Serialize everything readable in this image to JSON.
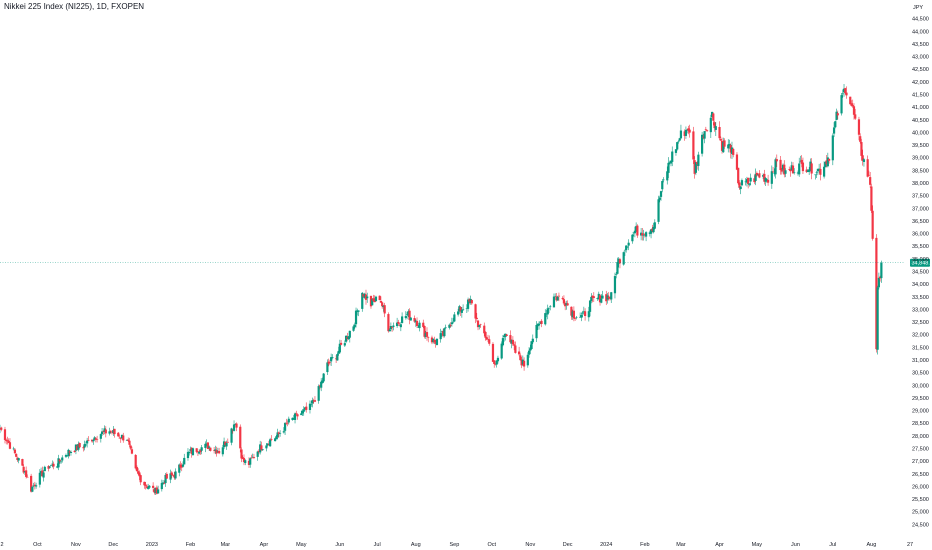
{
  "header": {
    "title": "Nikkei 225 Index (NI225), 1D, FXOPEN"
  },
  "chart_data": {
    "type": "candlestick",
    "currency": "JPY",
    "ylim": [
      24000,
      45000
    ],
    "y_ticks": [
      {
        "value": 44500,
        "label": "44,500"
      },
      {
        "value": 44000,
        "label": "44,000"
      },
      {
        "value": 43500,
        "label": "43,500"
      },
      {
        "value": 43000,
        "label": "43,000"
      },
      {
        "value": 42500,
        "label": "42,500"
      },
      {
        "value": 42000,
        "label": "42,000"
      },
      {
        "value": 41500,
        "label": "41,500"
      },
      {
        "value": 41000,
        "label": "41,000"
      },
      {
        "value": 40500,
        "label": "40,500"
      },
      {
        "value": 40000,
        "label": "40,000"
      },
      {
        "value": 39500,
        "label": "39,500"
      },
      {
        "value": 39000,
        "label": "39,000"
      },
      {
        "value": 38500,
        "label": "38,500"
      },
      {
        "value": 38000,
        "label": "38,000"
      },
      {
        "value": 37500,
        "label": "37,500"
      },
      {
        "value": 37000,
        "label": "37,000"
      },
      {
        "value": 36500,
        "label": "36,500"
      },
      {
        "value": 36000,
        "label": "36,000"
      },
      {
        "value": 35500,
        "label": "35,500"
      },
      {
        "value": 35000,
        "label": "35,000"
      },
      {
        "value": 34500,
        "label": "34,500"
      },
      {
        "value": 34000,
        "label": "34,000"
      },
      {
        "value": 33500,
        "label": "33,500"
      },
      {
        "value": 33000,
        "label": "33,000"
      },
      {
        "value": 32500,
        "label": "32,500"
      },
      {
        "value": 32000,
        "label": "32,000"
      },
      {
        "value": 31500,
        "label": "31,500"
      },
      {
        "value": 31000,
        "label": "31,000"
      },
      {
        "value": 30500,
        "label": "30,500"
      },
      {
        "value": 30000,
        "label": "30,000"
      },
      {
        "value": 29500,
        "label": "29,500"
      },
      {
        "value": 29000,
        "label": "29,000"
      },
      {
        "value": 28500,
        "label": "28,500"
      },
      {
        "value": 28000,
        "label": "28,000"
      },
      {
        "value": 27500,
        "label": "27,500"
      },
      {
        "value": 27000,
        "label": "27,000"
      },
      {
        "value": 26500,
        "label": "26,500"
      },
      {
        "value": 26000,
        "label": "26,000"
      },
      {
        "value": 25500,
        "label": "25,500"
      },
      {
        "value": 25000,
        "label": "25,000"
      },
      {
        "value": 24500,
        "label": "24,500"
      }
    ],
    "x_ticks": [
      {
        "date": "2022-09-01",
        "label": "2"
      },
      {
        "date": "2022-10-01",
        "label": "Oct"
      },
      {
        "date": "2022-11-01",
        "label": "Nov"
      },
      {
        "date": "2022-12-01",
        "label": "Dec"
      },
      {
        "date": "2023-01-01",
        "label": "2023"
      },
      {
        "date": "2023-02-01",
        "label": "Feb"
      },
      {
        "date": "2023-03-01",
        "label": "Mar"
      },
      {
        "date": "2023-04-01",
        "label": "Apr"
      },
      {
        "date": "2023-05-01",
        "label": "May"
      },
      {
        "date": "2023-06-01",
        "label": "Jun"
      },
      {
        "date": "2023-07-01",
        "label": "Jul"
      },
      {
        "date": "2023-08-01",
        "label": "Aug"
      },
      {
        "date": "2023-09-01",
        "label": "Sep"
      },
      {
        "date": "2023-10-01",
        "label": "Oct"
      },
      {
        "date": "2023-11-01",
        "label": "Nov"
      },
      {
        "date": "2023-12-01",
        "label": "Dec"
      },
      {
        "date": "2024-01-01",
        "label": "2024"
      },
      {
        "date": "2024-02-01",
        "label": "Feb"
      },
      {
        "date": "2024-03-01",
        "label": "Mar"
      },
      {
        "date": "2024-04-01",
        "label": "Apr"
      },
      {
        "date": "2024-05-01",
        "label": "May"
      },
      {
        "date": "2024-06-01",
        "label": "Jun"
      },
      {
        "date": "2024-07-01",
        "label": "Jul"
      },
      {
        "date": "2024-08-01",
        "label": "Aug"
      },
      {
        "date": "2024-09-01",
        "label": "27"
      }
    ],
    "xlim": [
      "2022-09-01",
      "2024-09-01"
    ],
    "price_path": [
      [
        "2022-09-01",
        28300
      ],
      [
        "2022-09-07",
        27800
      ],
      [
        "2022-09-14",
        27200
      ],
      [
        "2022-09-21",
        26600
      ],
      [
        "2022-09-26",
        25900
      ],
      [
        "2022-10-03",
        26400
      ],
      [
        "2022-10-10",
        26800
      ],
      [
        "2022-10-17",
        26900
      ],
      [
        "2022-10-24",
        27300
      ],
      [
        "2022-10-31",
        27500
      ],
      [
        "2022-11-07",
        27600
      ],
      [
        "2022-11-14",
        27900
      ],
      [
        "2022-11-21",
        28100
      ],
      [
        "2022-11-28",
        28200
      ],
      [
        "2022-12-05",
        28000
      ],
      [
        "2022-12-12",
        27900
      ],
      [
        "2022-12-19",
        26600
      ],
      [
        "2022-12-26",
        26100
      ],
      [
        "2023-01-04",
        25800
      ],
      [
        "2023-01-12",
        26300
      ],
      [
        "2023-01-20",
        26500
      ],
      [
        "2023-01-30",
        27300
      ],
      [
        "2023-02-07",
        27500
      ],
      [
        "2023-02-15",
        27600
      ],
      [
        "2023-02-24",
        27400
      ],
      [
        "2023-03-03",
        27900
      ],
      [
        "2023-03-09",
        28600
      ],
      [
        "2023-03-15",
        27000
      ],
      [
        "2023-03-20",
        26900
      ],
      [
        "2023-03-28",
        27500
      ],
      [
        "2023-04-05",
        27800
      ],
      [
        "2023-04-12",
        28000
      ],
      [
        "2023-04-20",
        28500
      ],
      [
        "2023-04-28",
        28800
      ],
      [
        "2023-05-08",
        29100
      ],
      [
        "2023-05-15",
        29800
      ],
      [
        "2023-05-22",
        30800
      ],
      [
        "2023-05-29",
        31200
      ],
      [
        "2023-06-05",
        31800
      ],
      [
        "2023-06-12",
        32400
      ],
      [
        "2023-06-19",
        33700
      ],
      [
        "2023-06-26",
        33200
      ],
      [
        "2023-07-03",
        33500
      ],
      [
        "2023-07-10",
        32300
      ],
      [
        "2023-07-18",
        32500
      ],
      [
        "2023-07-25",
        32800
      ],
      [
        "2023-08-01",
        32600
      ],
      [
        "2023-08-08",
        32100
      ],
      [
        "2023-08-16",
        31700
      ],
      [
        "2023-08-23",
        32000
      ],
      [
        "2023-08-30",
        32600
      ],
      [
        "2023-09-06",
        33000
      ],
      [
        "2023-09-14",
        33300
      ],
      [
        "2023-09-21",
        32300
      ],
      [
        "2023-09-28",
        31800
      ],
      [
        "2023-10-04",
        30700
      ],
      [
        "2023-10-12",
        32200
      ],
      [
        "2023-10-20",
        31300
      ],
      [
        "2023-10-27",
        30800
      ],
      [
        "2023-11-02",
        31800
      ],
      [
        "2023-11-10",
        32600
      ],
      [
        "2023-11-20",
        33500
      ],
      [
        "2023-11-28",
        33400
      ],
      [
        "2023-12-06",
        32800
      ],
      [
        "2023-12-13",
        32700
      ],
      [
        "2023-12-20",
        33300
      ],
      [
        "2023-12-28",
        33500
      ],
      [
        "2024-01-05",
        33500
      ],
      [
        "2024-01-10",
        34800
      ],
      [
        "2024-01-17",
        35600
      ],
      [
        "2024-01-24",
        36100
      ],
      [
        "2024-02-01",
        36100
      ],
      [
        "2024-02-08",
        36300
      ],
      [
        "2024-02-15",
        37900
      ],
      [
        "2024-02-22",
        39000
      ],
      [
        "2024-03-01",
        39900
      ],
      [
        "2024-03-07",
        40200
      ],
      [
        "2024-03-12",
        38500
      ],
      [
        "2024-03-19",
        40000
      ],
      [
        "2024-03-26",
        40700
      ],
      [
        "2024-04-03",
        39500
      ],
      [
        "2024-04-10",
        39400
      ],
      [
        "2024-04-17",
        37900
      ],
      [
        "2024-04-24",
        38000
      ],
      [
        "2024-05-02",
        38300
      ],
      [
        "2024-05-10",
        38200
      ],
      [
        "2024-05-17",
        38800
      ],
      [
        "2024-05-24",
        38400
      ],
      [
        "2024-05-31",
        38600
      ],
      [
        "2024-06-07",
        38700
      ],
      [
        "2024-06-14",
        38600
      ],
      [
        "2024-06-21",
        38500
      ],
      [
        "2024-06-28",
        39100
      ],
      [
        "2024-07-04",
        40600
      ],
      [
        "2024-07-11",
        41800
      ],
      [
        "2024-07-17",
        40900
      ],
      [
        "2024-07-24",
        39200
      ],
      [
        "2024-07-31",
        38000
      ],
      [
        "2024-08-02",
        35900
      ],
      [
        "2024-08-05",
        31500
      ],
      [
        "2024-08-06",
        33700
      ],
      [
        "2024-08-09",
        34800
      ]
    ],
    "last_price": 34848.4,
    "last_price_label": "34,848.4",
    "colors": {
      "up": "#089981",
      "down": "#f23645",
      "last_price_line": "#089981",
      "text": "#131722"
    }
  }
}
